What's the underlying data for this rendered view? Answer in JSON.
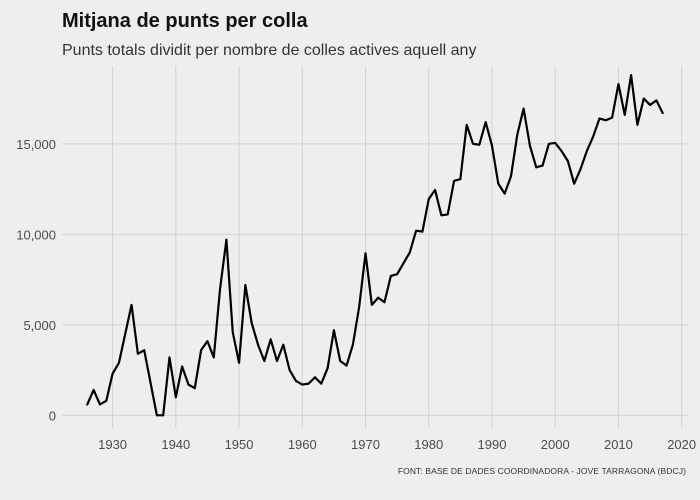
{
  "chart_data": {
    "type": "line",
    "title": "Mitjana de punts per colla",
    "subtitle": "Punts totals dividit per nombre de colles actives aquell any",
    "source": "FONT: BASE DE DADES COORDINADORA - JOVE TARRAGONA (BDCJ)",
    "xlabel": "",
    "ylabel": "",
    "xlim": [
      1922,
      2021
    ],
    "ylim": [
      -700,
      19300
    ],
    "x_ticks": [
      1930,
      1940,
      1950,
      1960,
      1970,
      1980,
      1990,
      2000,
      2010,
      2020
    ],
    "y_ticks": [
      0,
      5000,
      10000,
      15000
    ],
    "y_tick_labels": [
      "0",
      "5,000",
      "10,000",
      "15,000"
    ],
    "grid": true,
    "line_color": "#000000",
    "series": [
      {
        "x": [
          1926,
          1927,
          1928,
          1929,
          1930,
          1931,
          1932,
          1933,
          1934,
          1935,
          1936,
          1937,
          1938,
          1939,
          1940,
          1941,
          1942,
          1943,
          1944,
          1945,
          1946,
          1947,
          1948,
          1949,
          1950,
          1951,
          1952,
          1953,
          1954,
          1955,
          1956,
          1957,
          1958,
          1959,
          1960,
          1961,
          1962,
          1963,
          1964,
          1965,
          1966,
          1967,
          1968,
          1969,
          1970,
          1971,
          1972,
          1973,
          1974,
          1975,
          1976,
          1977,
          1978,
          1979,
          1980,
          1981,
          1982,
          1983,
          1984,
          1985,
          1986,
          1987,
          1988,
          1989,
          1990,
          1991,
          1992,
          1993,
          1994,
          1995,
          1996,
          1997,
          1998,
          1999,
          2000,
          2001,
          2002,
          2003,
          2004,
          2005,
          2006,
          2007,
          2008,
          2009,
          2010,
          2011,
          2012,
          2013,
          2014,
          2015,
          2016,
          2017
        ],
        "values": [
          600,
          1400,
          600,
          800,
          2300,
          2900,
          4500,
          6100,
          3400,
          3600,
          1800,
          0,
          0,
          3200,
          1000,
          2700,
          1700,
          1500,
          3600,
          4100,
          3200,
          7000,
          9700,
          4600,
          2900,
          7200,
          5100,
          3900,
          3000,
          4200,
          3000,
          3900,
          2500,
          1900,
          1700,
          1750,
          2100,
          1750,
          2600,
          4700,
          3000,
          2750,
          3900,
          6000,
          8950,
          6100,
          6500,
          6250,
          7700,
          7800,
          8400,
          9000,
          10200,
          10150,
          11950,
          12450,
          11050,
          11100,
          12950,
          13050,
          16050,
          15000,
          14950,
          16200,
          14900,
          12800,
          12250,
          13200,
          15500,
          16950,
          14900,
          13700,
          13800,
          15000,
          15050,
          14600,
          14050,
          12800,
          13600,
          14600,
          15400,
          16400,
          16300,
          16450,
          18300,
          16600,
          18800,
          16050,
          17500,
          17150,
          17400,
          16700
        ]
      }
    ]
  }
}
